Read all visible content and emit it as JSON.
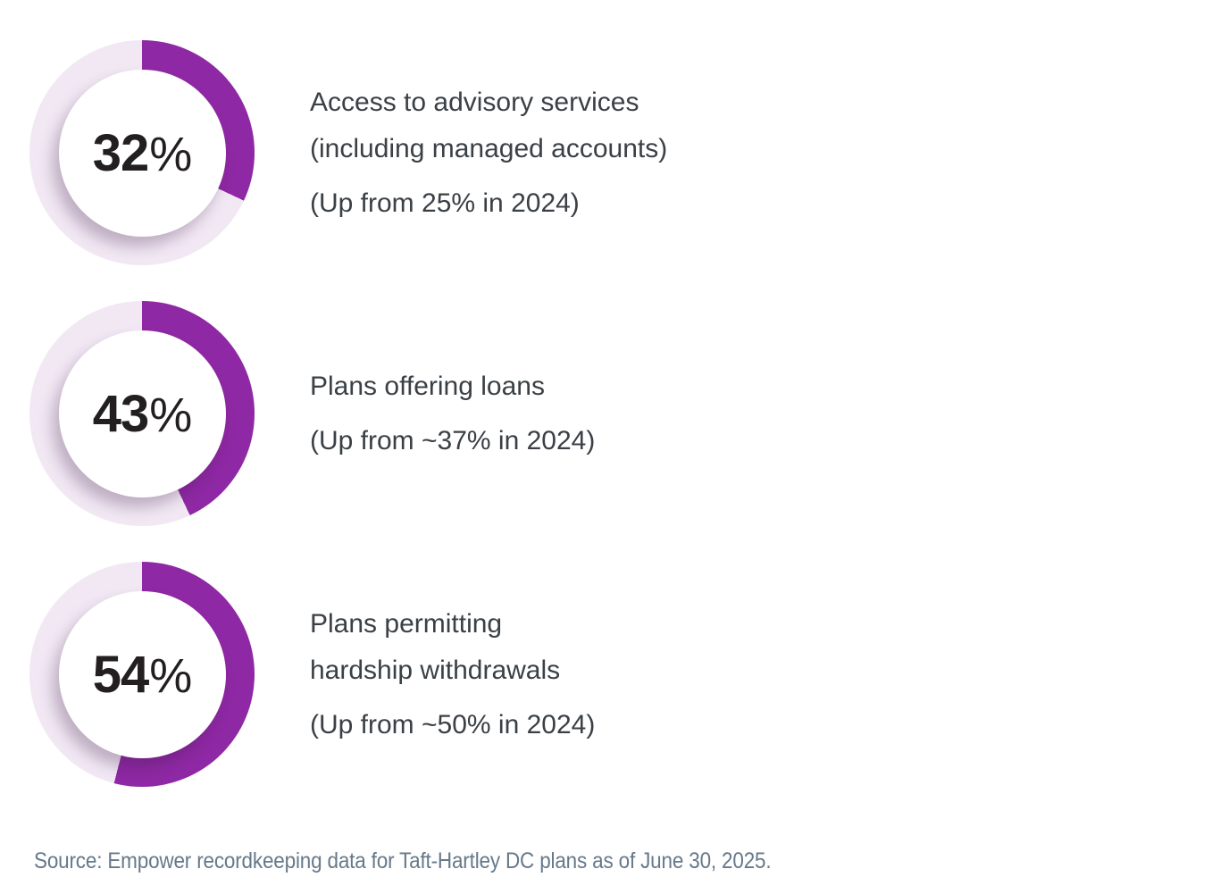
{
  "percent_symbol": "%",
  "colors": {
    "donut_fill": "#8F28A4",
    "donut_track": "#F2E8F4",
    "percent_text": "#231F20",
    "label_text": "#3A4045",
    "source_text": "#66798B"
  },
  "rows": [
    {
      "percent": 32,
      "display": "32",
      "label_lines": [
        "Access to advisory services",
        "(including managed accounts)"
      ],
      "note": "(Up from 25% in 2024)"
    },
    {
      "percent": 43,
      "display": "43",
      "label_lines": [
        "Plans offering loans"
      ],
      "note": "(Up from ~37% in 2024)"
    },
    {
      "percent": 54,
      "display": "54",
      "label_lines": [
        "Plans permitting",
        "hardship withdrawals"
      ],
      "note": "(Up from ~50% in 2024)"
    }
  ],
  "source": "Source: Empower recordkeeping data for Taft-Hartley DC plans as of June 30, 2025.",
  "chart_data": {
    "type": "pie",
    "subtype": "donut-multiples",
    "categories": [
      "Access to advisory services (including managed accounts)",
      "Plans offering loans",
      "Plans permitting hardship withdrawals"
    ],
    "values": [
      32,
      43,
      54
    ],
    "prior_year_values": [
      25,
      37,
      50
    ],
    "prior_year_approximate": [
      false,
      true,
      true
    ],
    "notes": [
      "(Up from 25% in 2024)",
      "(Up from ~37% in 2024)",
      "(Up from ~50% in 2024)"
    ],
    "value_unit": "%",
    "arc_start": "12-o'clock, clockwise",
    "fill_color": "#8F28A4",
    "track_color": "#F2E8F4",
    "source": "Source: Empower recordkeeping data for Taft-Hartley DC plans as of June 30, 2025."
  }
}
